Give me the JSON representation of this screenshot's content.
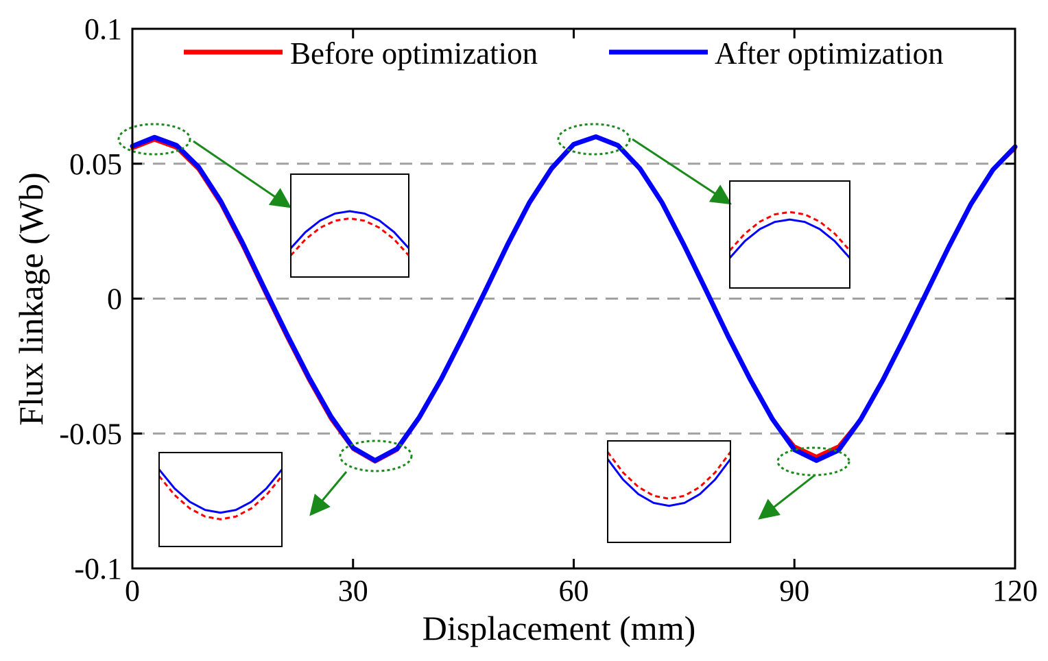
{
  "chart_data": {
    "type": "line",
    "title": "",
    "xlabel": "Displacement (mm)",
    "ylabel": "Flux linkage (Wb)",
    "xlim": [
      0,
      120
    ],
    "ylim": [
      -0.1,
      0.1
    ],
    "xticks": [
      0,
      30,
      60,
      90,
      120
    ],
    "xtick_labels": [
      "0",
      "30",
      "60",
      "90",
      "120"
    ],
    "yticks": [
      0.1,
      0.05,
      0,
      -0.05,
      -0.1
    ],
    "ytick_labels": [
      "0.1",
      "0.05",
      "0",
      "-0.05",
      "-0.1"
    ],
    "gridlines_y": [
      0.05,
      0,
      -0.05
    ],
    "legend_position": "top",
    "series": [
      {
        "name": "Before optimization",
        "color": "#ff0000",
        "x": [
          0,
          3,
          6,
          9,
          12,
          15,
          18,
          21,
          24,
          27,
          30,
          33,
          36,
          39,
          42,
          45,
          48,
          51,
          54,
          57,
          60,
          63,
          66,
          69,
          72,
          75,
          78,
          81,
          84,
          87,
          90,
          93,
          96,
          99,
          102,
          105,
          108,
          111,
          114,
          117,
          120
        ],
        "values": [
          0.0556,
          0.0588,
          0.0558,
          0.0478,
          0.0352,
          0.0195,
          0.0025,
          -0.0142,
          -0.0302,
          -0.0447,
          -0.0558,
          -0.0605,
          -0.0561,
          -0.0445,
          -0.0302,
          -0.0142,
          0.0025,
          0.0195,
          0.0352,
          0.0478,
          0.057,
          0.06,
          0.057,
          0.0478,
          0.0352,
          0.0195,
          0.0025,
          -0.0142,
          -0.0302,
          -0.0447,
          -0.0547,
          -0.0585,
          -0.0547,
          -0.0447,
          -0.0302,
          -0.0142,
          0.0025,
          0.0195,
          0.0352,
          0.0478,
          0.0556
        ]
      },
      {
        "name": "After optimization",
        "color": "#0000ff",
        "x": [
          0,
          3,
          6,
          9,
          12,
          15,
          18,
          21,
          24,
          27,
          30,
          33,
          36,
          39,
          42,
          45,
          48,
          51,
          54,
          57,
          60,
          63,
          66,
          69,
          72,
          75,
          78,
          81,
          84,
          87,
          90,
          93,
          96,
          99,
          102,
          105,
          108,
          111,
          114,
          117,
          120
        ],
        "values": [
          0.0565,
          0.0598,
          0.0568,
          0.0488,
          0.0362,
          0.0205,
          0.0035,
          -0.0132,
          -0.0292,
          -0.0437,
          -0.0553,
          -0.06,
          -0.0556,
          -0.044,
          -0.0297,
          -0.0137,
          0.003,
          0.02,
          0.0357,
          0.0483,
          0.0572,
          0.06,
          0.0568,
          0.0482,
          0.0356,
          0.0198,
          0.003,
          -0.014,
          -0.03,
          -0.0446,
          -0.056,
          -0.06,
          -0.0562,
          -0.0448,
          -0.0303,
          -0.0142,
          0.0025,
          0.0193,
          0.035,
          0.0478,
          0.0563
        ]
      }
    ],
    "zoom_regions": [
      {
        "name": "peak-1",
        "x_center": 3,
        "y_center": 0.059,
        "before_above_after": false
      },
      {
        "name": "peak-2",
        "x_center": 63,
        "y_center": 0.06,
        "before_above_after": true
      },
      {
        "name": "valley-1",
        "x_center": 33,
        "y_center": -0.06,
        "before_above_after": false
      },
      {
        "name": "valley-2",
        "x_center": 93,
        "y_center": -0.059,
        "before_above_after": true
      }
    ]
  },
  "colors": {
    "before": "#ff0000",
    "after": "#0000ff",
    "grid": "#a0a0a0",
    "annotation": "#1a8a1a"
  }
}
